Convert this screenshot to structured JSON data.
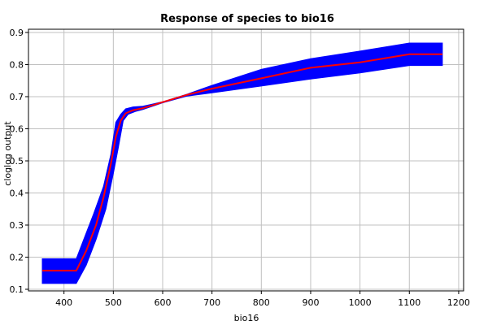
{
  "chart_data": {
    "type": "line",
    "title": "Response of species to bio16",
    "xlabel": "bio16",
    "ylabel": "cloglog output",
    "xlim": [
      328,
      1210
    ],
    "ylim": [
      0.095,
      0.91
    ],
    "x_ticks": [
      400,
      500,
      600,
      700,
      800,
      900,
      1000,
      1100,
      1200
    ],
    "y_ticks": [
      0.1,
      0.2,
      0.3,
      0.4,
      0.5,
      0.6,
      0.7,
      0.8,
      0.9
    ],
    "x_tick_labels": [
      "400",
      "500",
      "600",
      "700",
      "800",
      "900",
      "1000",
      "1100",
      "1200"
    ],
    "y_tick_labels": [
      "0.1",
      "0.2",
      "0.3",
      "0.4",
      "0.5",
      "0.6",
      "0.7",
      "0.8",
      "0.9"
    ],
    "grid": true,
    "colors": {
      "mean_line": "#ff0000",
      "band": "#0000ff",
      "grid": "#c0c0c0"
    },
    "series": [
      {
        "role": "mean",
        "x": [
          356,
          425,
          445,
          465,
          480,
          495,
          505,
          515,
          525,
          540,
          560,
          600,
          650,
          700,
          800,
          900,
          1000,
          1100,
          1167
        ],
        "y": [
          0.158,
          0.158,
          0.22,
          0.3,
          0.385,
          0.49,
          0.575,
          0.625,
          0.648,
          0.658,
          0.664,
          0.683,
          0.706,
          0.725,
          0.757,
          0.79,
          0.807,
          0.832,
          0.832
        ]
      },
      {
        "role": "band_upper",
        "x": [
          356,
          425,
          440,
          460,
          480,
          495,
          505,
          515,
          525,
          540,
          560,
          600,
          650,
          700,
          800,
          900,
          1000,
          1100,
          1167
        ],
        "y": [
          0.195,
          0.195,
          0.255,
          0.335,
          0.42,
          0.52,
          0.62,
          0.645,
          0.662,
          0.668,
          0.67,
          0.684,
          0.708,
          0.735,
          0.785,
          0.818,
          0.842,
          0.867,
          0.867
        ]
      },
      {
        "role": "band_lower",
        "x": [
          356,
          425,
          445,
          465,
          485,
          500,
          510,
          520,
          530,
          545,
          560,
          600,
          650,
          700,
          800,
          900,
          1000,
          1100,
          1167
        ],
        "y": [
          0.118,
          0.118,
          0.175,
          0.255,
          0.35,
          0.46,
          0.54,
          0.625,
          0.645,
          0.654,
          0.66,
          0.681,
          0.702,
          0.712,
          0.733,
          0.755,
          0.774,
          0.797,
          0.797
        ]
      }
    ]
  }
}
